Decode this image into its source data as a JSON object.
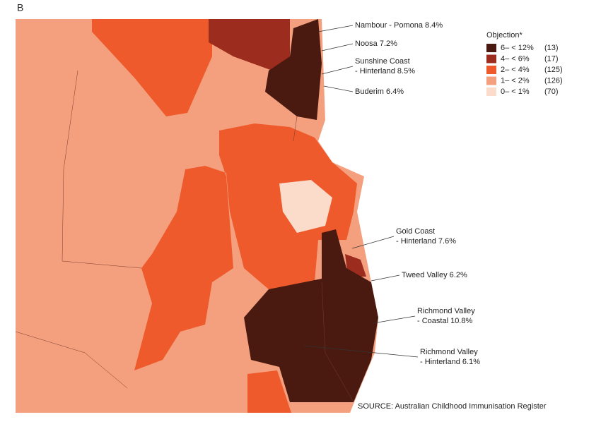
{
  "panel": "B",
  "legend": {
    "title": "Objection*",
    "items": [
      {
        "label": "6– < 12%",
        "count": "(13)",
        "color": "#4a1a10"
      },
      {
        "label": "4– < 6%",
        "count": "(17)",
        "color": "#9c2c1e"
      },
      {
        "label": "2– < 4%",
        "count": "(125)",
        "color": "#ee5a2c"
      },
      {
        "label": "1– < 2%",
        "count": "(126)",
        "color": "#f4a07e"
      },
      {
        "label": "0– < 1%",
        "count": "(70)",
        "color": "#fbdccb"
      }
    ]
  },
  "callouts": [
    {
      "lines": [
        "Nambour - Pomona 8.4%"
      ]
    },
    {
      "lines": [
        "Noosa 7.2%"
      ]
    },
    {
      "lines": [
        "Sunshine Coast",
        "- Hinterland 8.5%"
      ]
    },
    {
      "lines": [
        "Buderim 6.4%"
      ]
    },
    {
      "lines": [
        "Gold Coast",
        "- Hinterland 7.6%"
      ]
    },
    {
      "lines": [
        "Tweed Valley 6.2%"
      ]
    },
    {
      "lines": [
        "Richmond Valley",
        "- Coastal 10.8%"
      ]
    },
    {
      "lines": [
        "Richmond Valley",
        "- Hinterland 6.1%"
      ]
    }
  ],
  "source": "SOURCE:  Australian Childhood Immunisation Register"
}
